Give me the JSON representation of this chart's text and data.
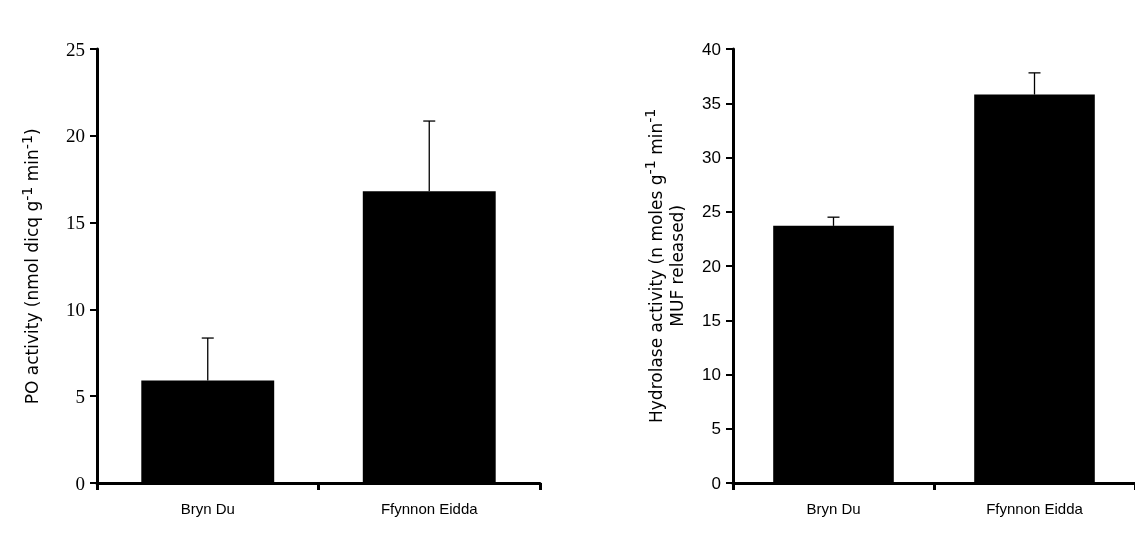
{
  "chart_data": [
    {
      "type": "bar",
      "categories": [
        "Bryn Du",
        "Ffynnon Eidda"
      ],
      "values": [
        5.9,
        16.8
      ],
      "errors": [
        [
          5.9,
          8.35
        ],
        [
          16.8,
          20.85
        ]
      ],
      "color": "#000000",
      "ylabel": "PO activity (nmol dicq g$^{-1}$ min$^{-1}$)",
      "ylim": [
        0,
        25
      ],
      "yticks": [
        0,
        5,
        10,
        15,
        20,
        25
      ],
      "grid": false
    },
    {
      "type": "bar",
      "categories": [
        "Bryn Du",
        "Ffynnon Eidda"
      ],
      "values": [
        23.7,
        35.8
      ],
      "errors": [
        [
          23.7,
          24.5
        ],
        [
          35.8,
          37.8
        ]
      ],
      "color": "#000000",
      "ylabel": "Hydrolase activity (n moles g$^{-1}$ min$^{-1}$ MUF released)",
      "ylim": [
        0,
        40
      ],
      "yticks": [
        0,
        5,
        10,
        15,
        20,
        25,
        30,
        35,
        40
      ],
      "grid": false
    }
  ]
}
